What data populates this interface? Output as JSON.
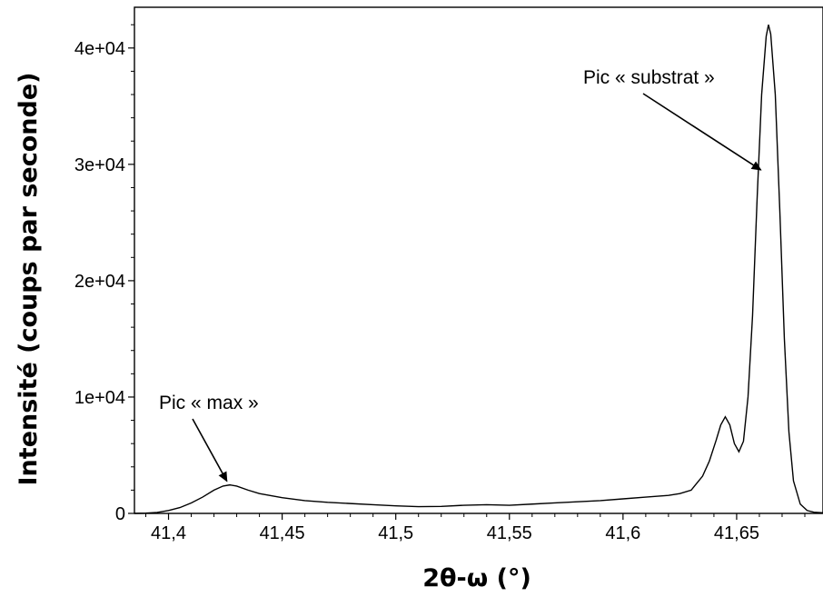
{
  "chart_data": {
    "type": "line",
    "title": "",
    "xlabel": "2θ-ω (°)",
    "ylabel": "Intensité (coups par seconde)",
    "xlim": [
      41.385,
      41.688
    ],
    "ylim": [
      0,
      43500
    ],
    "xticks": [
      {
        "value": 41.4,
        "label": "41,4"
      },
      {
        "value": 41.45,
        "label": "41,45"
      },
      {
        "value": 41.5,
        "label": "41,5"
      },
      {
        "value": 41.55,
        "label": "41,55"
      },
      {
        "value": 41.6,
        "label": "41,6"
      },
      {
        "value": 41.65,
        "label": "41,65"
      }
    ],
    "yticks": [
      {
        "value": 0,
        "label": "0"
      },
      {
        "value": 10000,
        "label": "1e+04"
      },
      {
        "value": 20000,
        "label": "2e+04"
      },
      {
        "value": 30000,
        "label": "3e+04"
      },
      {
        "value": 40000,
        "label": "4e+04"
      }
    ],
    "grid": false,
    "series": [
      {
        "x": [
          41.385,
          41.39,
          41.395,
          41.4,
          41.405,
          41.41,
          41.415,
          41.42,
          41.424,
          41.427,
          41.43,
          41.435,
          41.44,
          41.45,
          41.46,
          41.47,
          41.48,
          41.49,
          41.5,
          41.51,
          41.52,
          41.53,
          41.54,
          41.55,
          41.56,
          41.57,
          41.58,
          41.59,
          41.6,
          41.61,
          41.62,
          41.625,
          41.63,
          41.635,
          41.638,
          41.641,
          41.643,
          41.645,
          41.647,
          41.649,
          41.651,
          41.653,
          41.655,
          41.657,
          41.659,
          41.661,
          41.663,
          41.664,
          41.665,
          41.667,
          41.669,
          41.671,
          41.673,
          41.675,
          41.678,
          41.681,
          41.684,
          41.688
        ],
        "y": [
          0,
          20,
          80,
          250,
          500,
          900,
          1400,
          2000,
          2350,
          2450,
          2350,
          2000,
          1700,
          1350,
          1100,
          950,
          850,
          750,
          650,
          580,
          600,
          700,
          750,
          700,
          800,
          900,
          1000,
          1100,
          1250,
          1400,
          1550,
          1700,
          2000,
          3200,
          4500,
          6300,
          7600,
          8300,
          7600,
          6000,
          5300,
          6200,
          10000,
          17000,
          27000,
          36000,
          41000,
          42000,
          41200,
          36000,
          26000,
          15000,
          7000,
          2800,
          800,
          250,
          100,
          50
        ]
      }
    ],
    "annotations": [
      {
        "text": "Pic « max »",
        "x": 41.4265,
        "y": 2450
      },
      {
        "text": "Pic « substrat »",
        "x": 41.6615,
        "y": 29200
      }
    ]
  }
}
